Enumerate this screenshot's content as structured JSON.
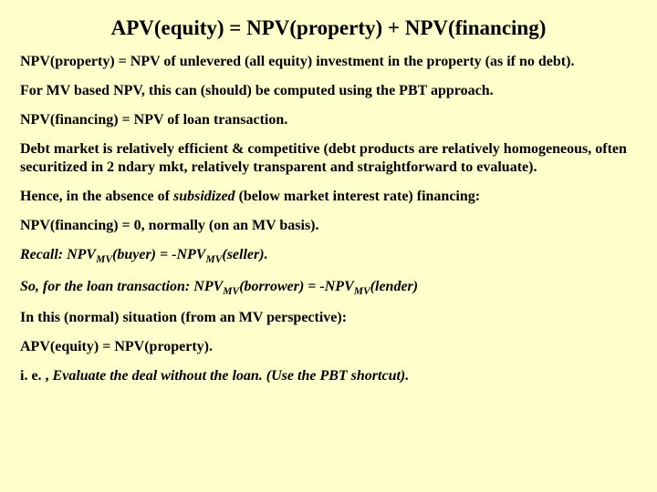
{
  "background_color": "#ffffcc",
  "text_color": "#000000",
  "font_family": "Times New Roman",
  "title": {
    "text": "APV(equity) = NPV(property) + NPV(financing)",
    "fontsize": 23,
    "weight": "bold",
    "align": "center"
  },
  "body_fontsize": 16,
  "body_weight": "bold",
  "paragraphs": {
    "p1": "NPV(property) = NPV of unlevered (all equity) investment in the property (as if no debt).",
    "p2": "For MV based NPV, this can (should) be computed using the PBT approach.",
    "p3": "NPV(financing) = NPV of loan transaction.",
    "p4": "Debt market is relatively efficient & competitive (debt products are relatively homogeneous, often securitized in 2 ndary mkt, relatively transparent and straightforward to evaluate).",
    "p5_pre": "Hence, in the absence of ",
    "p5_ital": "subsidized",
    "p5_post": " (below market interest rate) financing:",
    "p6": "NPV(financing) = 0, normally (on an MV basis).",
    "p7_a": "Recall: NPV",
    "p7_sub1": "MV",
    "p7_b": "(buyer) = -NPV",
    "p7_sub2": "MV",
    "p7_c": "(seller).",
    "p8_a": "So, for the loan transaction: NPV",
    "p8_sub1": "MV",
    "p8_b": "(borrower) = -NPV",
    "p8_sub2": "MV",
    "p8_c": "(lender)",
    "p9": "In this (normal) situation (from an MV perspective):",
    "p10": "APV(equity) = NPV(property).",
    "p11_pre": "i. e. , ",
    "p11_ital": "Evaluate the deal without the loan. (Use the PBT shortcut)."
  }
}
